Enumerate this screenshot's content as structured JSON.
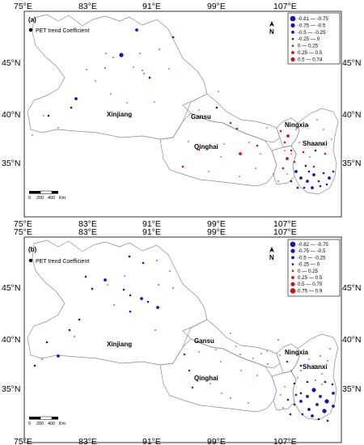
{
  "colors": {
    "negative": "#1212cc",
    "positive": "#d01212",
    "border": "#8a8a8a"
  },
  "lon_labels": [
    "75°E",
    "83°E",
    "91°E",
    "99°E",
    "107°E"
  ],
  "lat_labels": [
    "45°N",
    "40°N",
    "35°N"
  ],
  "panels": [
    {
      "label": "(a)",
      "legend_title": "PET trend Coefficient",
      "legend": [
        {
          "label": "-0.81  — -0.75",
          "sign": "neg",
          "size": 5
        },
        {
          "label": "-0.75  — -0.5",
          "sign": "neg",
          "size": 4
        },
        {
          "label": "-0.5  — -0.25",
          "sign": "neg",
          "size": 3
        },
        {
          "label": "-0.25  —  0",
          "sign": "neg",
          "size": 2
        },
        {
          "label": "0  —  0.25",
          "sign": "pos",
          "size": 2
        },
        {
          "label": "0.25  —  0.5",
          "sign": "pos",
          "size": 3
        },
        {
          "label": "0.5  —  0.74",
          "sign": "pos",
          "size": 4
        }
      ],
      "provinces": [
        "Xinjiang",
        "Gansu",
        "Qinghai",
        "Ningxia",
        "Shaanxi"
      ],
      "scale": [
        "0",
        "200",
        "400",
        "Km"
      ],
      "north": "N"
    },
    {
      "label": "(b)",
      "legend_title": "PET trend Coefficient",
      "legend": [
        {
          "label": "-0.82  — -0.75",
          "sign": "neg",
          "size": 5
        },
        {
          "label": "-0.75  — -0.5",
          "sign": "neg",
          "size": 4
        },
        {
          "label": "-0.5  — -0.25",
          "sign": "neg",
          "size": 3
        },
        {
          "label": "-0.25  —  0",
          "sign": "neg",
          "size": 2
        },
        {
          "label": "0  —  0.25",
          "sign": "pos",
          "size": 2
        },
        {
          "label": "0.25  —  0.5",
          "sign": "pos",
          "size": 3
        },
        {
          "label": "0.5  —  0.75",
          "sign": "pos",
          "size": 4
        },
        {
          "label": "0.75  —  0.9",
          "sign": "pos",
          "size": 5
        }
      ],
      "provinces": [
        "Xinjiang",
        "Gansu",
        "Qinghai",
        "Ningxia",
        "Shaanxi"
      ],
      "scale": [
        "0",
        "200",
        "400",
        "Km"
      ],
      "north": "N"
    }
  ]
}
